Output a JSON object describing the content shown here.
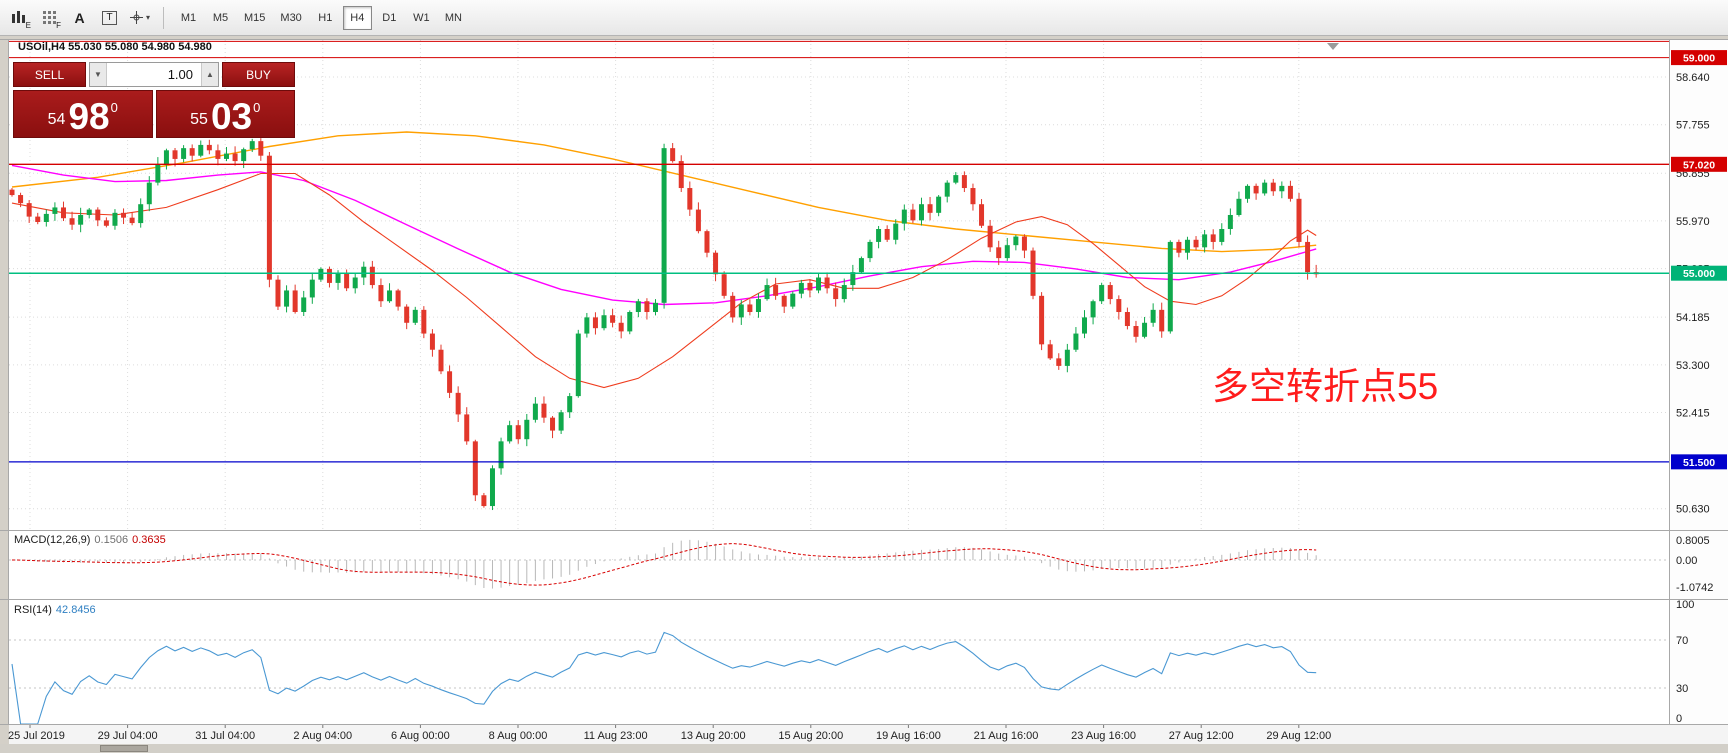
{
  "toolbar": {
    "icons": [
      {
        "name": "chart-bars-icon",
        "letter": "E"
      },
      {
        "name": "data-grid-icon",
        "letter": "F"
      },
      {
        "name": "text-tool-icon",
        "letter": "A"
      },
      {
        "name": "label-tool-icon",
        "letter": "T"
      },
      {
        "name": "crosshair-tool-icon",
        "letter": "▾"
      }
    ],
    "timeframes": [
      {
        "label": "M1",
        "active": false
      },
      {
        "label": "M5",
        "active": false
      },
      {
        "label": "M15",
        "active": false
      },
      {
        "label": "M30",
        "active": false
      },
      {
        "label": "H1",
        "active": false
      },
      {
        "label": "H4",
        "active": true
      },
      {
        "label": "D1",
        "active": false
      },
      {
        "label": "W1",
        "active": false
      },
      {
        "label": "MN",
        "active": false
      }
    ]
  },
  "one_click": {
    "sell_label": "SELL",
    "buy_label": "BUY",
    "volume": "1.00",
    "down_glyph": "▼",
    "up_glyph": "▲",
    "bid": {
      "small": "54",
      "big": "98",
      "sup": "0"
    },
    "ask": {
      "small": "55",
      "big": "03",
      "sup": "0"
    }
  },
  "chart": {
    "symbol_header": "USOil,H4  55.030 55.080 54.980 54.980",
    "annotation": "多空转折点55"
  },
  "indicators": {
    "macd": {
      "label": "MACD(12,26,9)",
      "value_main": "0.1506",
      "value_signal": "0.3635",
      "axis": [
        {
          "text": "0.8005",
          "value": 0.8005
        },
        {
          "text": "0.00",
          "value": 0
        },
        {
          "text": "-1.0742",
          "value": -1.0742
        }
      ],
      "fast": 12,
      "slow": 26,
      "signal": 9
    },
    "rsi": {
      "label": "RSI(14)",
      "value": "42.8456",
      "period": 14,
      "levels": [
        70,
        30
      ],
      "axis": [
        {
          "text": "100",
          "value": 100
        },
        {
          "text": "70",
          "value": 70
        },
        {
          "text": "30",
          "value": 30
        },
        {
          "text": "0",
          "value": 0
        }
      ]
    }
  },
  "chart_data": {
    "type": "candlestick",
    "symbol": "USOil",
    "timeframe": "H4",
    "colors": {
      "up": "#10a94c",
      "down": "#e2372b",
      "grid": "#dcdcdc",
      "macd_hist": "#b8b8b8",
      "macd_signal": "#d80000",
      "rsi_line": "#4a98d3",
      "level_line": "#c4c4c4"
    },
    "closes": [
      56.45,
      56.3,
      56.05,
      55.95,
      56.1,
      56.22,
      56.02,
      55.9,
      56.08,
      56.18,
      55.98,
      55.88,
      56.12,
      56.03,
      55.93,
      56.28,
      56.68,
      57.02,
      57.28,
      57.12,
      57.32,
      57.18,
      57.38,
      57.28,
      57.12,
      57.22,
      57.08,
      57.3,
      57.45,
      57.18,
      54.88,
      54.38,
      54.68,
      54.28,
      54.55,
      54.88,
      55.08,
      54.82,
      55.0,
      54.72,
      54.92,
      55.12,
      54.78,
      54.48,
      54.68,
      54.38,
      54.08,
      54.32,
      53.88,
      53.58,
      53.18,
      52.78,
      52.38,
      51.88,
      50.88,
      50.68,
      51.38,
      51.88,
      52.18,
      51.92,
      52.28,
      52.58,
      52.32,
      52.08,
      52.42,
      52.72,
      53.88,
      54.18,
      53.98,
      54.22,
      54.08,
      53.92,
      54.28,
      54.48,
      54.28,
      54.45,
      57.32,
      57.08,
      56.58,
      56.18,
      55.78,
      55.38,
      54.98,
      54.58,
      54.18,
      54.42,
      54.28,
      54.52,
      54.78,
      54.58,
      54.38,
      54.62,
      54.82,
      54.68,
      54.92,
      54.72,
      54.52,
      54.78,
      55.02,
      55.28,
      55.58,
      55.82,
      55.62,
      55.92,
      56.18,
      55.98,
      56.28,
      56.12,
      56.42,
      56.68,
      56.82,
      56.58,
      56.28,
      55.88,
      55.48,
      55.28,
      55.52,
      55.68,
      55.42,
      54.58,
      53.68,
      53.42,
      53.28,
      53.58,
      53.88,
      54.18,
      54.48,
      54.78,
      54.52,
      54.28,
      54.02,
      53.82,
      54.08,
      54.32,
      53.92,
      55.58,
      55.38,
      55.62,
      55.48,
      55.72,
      55.58,
      55.82,
      56.08,
      56.38,
      56.62,
      56.48,
      56.68,
      56.52,
      56.62,
      56.38,
      55.58,
      55.02,
      54.98
    ],
    "hlines": [
      {
        "price": 59.3,
        "color": "#d40000",
        "width": 1,
        "label": ""
      },
      {
        "price": 59.0,
        "color": "#d40000",
        "width": 1,
        "label": "59.000"
      },
      {
        "price": 57.02,
        "color": "#d40000",
        "width": 1.3,
        "label": "57.020"
      },
      {
        "price": 55.0,
        "color": "#00bf80",
        "width": 1.5,
        "label": "55.000"
      },
      {
        "price": 51.5,
        "color": "#0000cc",
        "width": 1.3,
        "label": "51.500"
      }
    ],
    "price_axis_labels": [
      {
        "text": "58.640",
        "price": 58.64
      },
      {
        "text": "57.755",
        "price": 57.755
      },
      {
        "text": "56.855",
        "price": 56.855
      },
      {
        "text": "55.970",
        "price": 55.97
      },
      {
        "text": "55.085",
        "price": 55.085
      },
      {
        "text": "54.185",
        "price": 54.185
      },
      {
        "text": "53.300",
        "price": 53.3
      },
      {
        "text": "52.415",
        "price": 52.415
      },
      {
        "text": "50.630",
        "price": 50.63
      }
    ],
    "price_badges": [
      {
        "text": "59.000",
        "price": 59.0,
        "bg": "#d40000"
      },
      {
        "text": "57.020",
        "price": 57.02,
        "bg": "#d40000"
      },
      {
        "text": "55.000",
        "price": 55.0,
        "bg": "#00b377"
      },
      {
        "text": "51.500",
        "price": 51.5,
        "bg": "#0000cc"
      }
    ],
    "time_axis": [
      "25 Jul 2019",
      "29 Jul 04:00",
      "31 Jul 04:00",
      "2 Aug 04:00",
      "6 Aug 00:00",
      "8 Aug 00:00",
      "11 Aug 23:00",
      "13 Aug 20:00",
      "15 Aug 20:00",
      "19 Aug 16:00",
      "21 Aug 16:00",
      "23 Aug 16:00",
      "27 Aug 12:00",
      "29 Aug 12:00"
    ],
    "ma_lines": [
      {
        "name": "ma-slow",
        "color": "#ffa000",
        "width": 1.4,
        "points": [
          [
            0,
            56.6
          ],
          [
            10,
            56.78
          ],
          [
            20,
            57.05
          ],
          [
            30,
            57.35
          ],
          [
            38,
            57.55
          ],
          [
            46,
            57.62
          ],
          [
            54,
            57.55
          ],
          [
            62,
            57.38
          ],
          [
            70,
            57.12
          ],
          [
            78,
            56.82
          ],
          [
            86,
            56.52
          ],
          [
            94,
            56.22
          ],
          [
            102,
            55.98
          ],
          [
            110,
            55.82
          ],
          [
            118,
            55.7
          ],
          [
            126,
            55.58
          ],
          [
            134,
            55.46
          ],
          [
            141,
            55.4
          ],
          [
            147,
            55.44
          ],
          [
            152,
            55.52
          ]
        ]
      },
      {
        "name": "ma-medium",
        "color": "#ff00ff",
        "width": 1.4,
        "points": [
          [
            0,
            57.0
          ],
          [
            6,
            56.82
          ],
          [
            12,
            56.7
          ],
          [
            18,
            56.72
          ],
          [
            24,
            56.82
          ],
          [
            29,
            56.88
          ],
          [
            34,
            56.72
          ],
          [
            40,
            56.35
          ],
          [
            46,
            55.9
          ],
          [
            52,
            55.45
          ],
          [
            58,
            55.02
          ],
          [
            64,
            54.7
          ],
          [
            70,
            54.5
          ],
          [
            76,
            54.42
          ],
          [
            82,
            54.45
          ],
          [
            88,
            54.58
          ],
          [
            94,
            54.75
          ],
          [
            100,
            54.95
          ],
          [
            106,
            55.12
          ],
          [
            112,
            55.22
          ],
          [
            118,
            55.2
          ],
          [
            124,
            55.08
          ],
          [
            130,
            54.92
          ],
          [
            136,
            54.88
          ],
          [
            142,
            55.02
          ],
          [
            147,
            55.22
          ],
          [
            152,
            55.45
          ]
        ]
      },
      {
        "name": "ma-fast",
        "color": "#ef3c1e",
        "width": 1.1,
        "points": [
          [
            0,
            56.3
          ],
          [
            6,
            56.12
          ],
          [
            12,
            56.08
          ],
          [
            18,
            56.22
          ],
          [
            24,
            56.55
          ],
          [
            29,
            56.85
          ],
          [
            33,
            56.85
          ],
          [
            37,
            56.45
          ],
          [
            41,
            55.95
          ],
          [
            45,
            55.5
          ],
          [
            49,
            55.05
          ],
          [
            53,
            54.55
          ],
          [
            57,
            54.0
          ],
          [
            61,
            53.45
          ],
          [
            65,
            53.05
          ],
          [
            69,
            52.88
          ],
          [
            73,
            53.05
          ],
          [
            77,
            53.45
          ],
          [
            81,
            53.95
          ],
          [
            85,
            54.45
          ],
          [
            89,
            54.8
          ],
          [
            93,
            54.88
          ],
          [
            97,
            54.72
          ],
          [
            101,
            54.72
          ],
          [
            105,
            54.92
          ],
          [
            109,
            55.25
          ],
          [
            113,
            55.65
          ],
          [
            117,
            55.95
          ],
          [
            120,
            56.05
          ],
          [
            123,
            55.9
          ],
          [
            126,
            55.55
          ],
          [
            129,
            55.15
          ],
          [
            132,
            54.75
          ],
          [
            135,
            54.48
          ],
          [
            138,
            54.42
          ],
          [
            141,
            54.58
          ],
          [
            144,
            54.9
          ],
          [
            147,
            55.3
          ],
          [
            149,
            55.6
          ],
          [
            151,
            55.8
          ],
          [
            152,
            55.7
          ]
        ]
      }
    ]
  }
}
